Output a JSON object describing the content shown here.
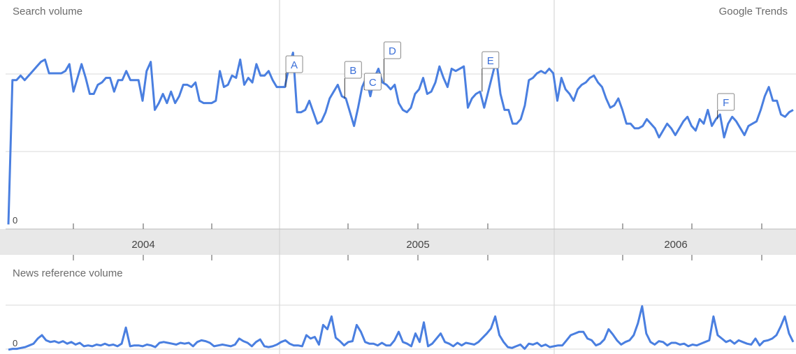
{
  "header": {
    "title": "Search volume",
    "brand": "Google Trends"
  },
  "news": {
    "title": "News reference volume"
  },
  "colors": {
    "line": "#4a7fe0",
    "grid": "#d9d9d9",
    "axis_band": "#e8e8e8"
  },
  "chart_data": [
    {
      "type": "line",
      "title": "Search volume",
      "zero_label": "0",
      "x_range": [
        "2003-07",
        "2006-11"
      ],
      "year_ticks": [
        "2004",
        "2005",
        "2006"
      ],
      "ylim": [
        0,
        100
      ],
      "grid": true,
      "series": [
        {
          "values": [
            2,
            65,
            65,
            67,
            65,
            67,
            69,
            71,
            73,
            74,
            68,
            68,
            68,
            68,
            69,
            72,
            60,
            66,
            72,
            66,
            59,
            59,
            63,
            64,
            66,
            66,
            60,
            65,
            65,
            69,
            65,
            65,
            65,
            56,
            69,
            73,
            52,
            55,
            59,
            55,
            60,
            55,
            58,
            63,
            63,
            62,
            64,
            56,
            55,
            55,
            55,
            56,
            69,
            62,
            63,
            67,
            66,
            74,
            63,
            66,
            64,
            72,
            67,
            67,
            69,
            65,
            62,
            62,
            62,
            71,
            77,
            51,
            51,
            52,
            56,
            51,
            46,
            47,
            51,
            57,
            60,
            63,
            58,
            57,
            51,
            45,
            53,
            62,
            66,
            58,
            66,
            70,
            64,
            63,
            61,
            63,
            55,
            52,
            51,
            53,
            59,
            61,
            66,
            59,
            60,
            64,
            71,
            66,
            62,
            70,
            69,
            70,
            71,
            53,
            57,
            59,
            60,
            53,
            60,
            67,
            74,
            59,
            52,
            52,
            46,
            46,
            48,
            54,
            65,
            66,
            68,
            69,
            68,
            70,
            68,
            56,
            66,
            61,
            59,
            56,
            61,
            63,
            64,
            66,
            67,
            64,
            62,
            57,
            53,
            54,
            57,
            52,
            46,
            46,
            44,
            44,
            45,
            48,
            46,
            44,
            40,
            43,
            46,
            44,
            41,
            44,
            47,
            49,
            45,
            43,
            48,
            46,
            52,
            45,
            48,
            50,
            40,
            46,
            49,
            47,
            44,
            41,
            45,
            46,
            47,
            52,
            58,
            62,
            56,
            56,
            50,
            49,
            51,
            52
          ]
        }
      ],
      "annotations": [
        {
          "label": "A",
          "x": "2004-09"
        },
        {
          "label": "B",
          "x": "2004-12"
        },
        {
          "label": "C",
          "x": "2005-01"
        },
        {
          "label": "D",
          "x": "2005-02"
        },
        {
          "label": "E",
          "x": "2005-07"
        },
        {
          "label": "F",
          "x": "2006-07"
        }
      ]
    },
    {
      "type": "line",
      "title": "News reference volume",
      "zero_label": "0",
      "ylim": [
        0,
        100
      ],
      "grid": true,
      "series": [
        {
          "values": [
            1,
            2,
            2,
            3,
            4,
            6,
            8,
            14,
            18,
            12,
            10,
            11,
            9,
            11,
            8,
            10,
            7,
            9,
            5,
            6,
            5,
            7,
            6,
            8,
            6,
            7,
            5,
            8,
            27,
            5,
            6,
            6,
            5,
            7,
            6,
            4,
            9,
            10,
            9,
            8,
            7,
            9,
            8,
            9,
            5,
            10,
            12,
            11,
            9,
            5,
            6,
            7,
            6,
            5,
            7,
            14,
            11,
            9,
            5,
            10,
            13,
            5,
            4,
            5,
            7,
            10,
            12,
            8,
            6,
            6,
            5,
            18,
            14,
            16,
            7,
            30,
            25,
            40,
            15,
            11,
            6,
            10,
            11,
            30,
            22,
            10,
            8,
            8,
            6,
            9,
            6,
            6,
            12,
            22,
            10,
            8,
            5,
            20,
            10,
            33,
            5,
            8,
            14,
            20,
            10,
            8,
            5,
            9,
            6,
            9,
            8,
            7,
            10,
            15,
            20,
            26,
            40,
            18,
            10,
            4,
            3,
            5,
            7,
            2,
            8,
            7,
            9,
            5,
            7,
            4,
            5,
            6,
            6,
            12,
            18,
            20,
            22,
            22,
            14,
            12,
            6,
            8,
            13,
            25,
            19,
            12,
            7,
            10,
            12,
            18,
            32,
            52,
            20,
            10,
            7,
            11,
            10,
            6,
            9,
            9,
            7,
            8,
            5,
            7,
            6,
            8,
            10,
            12,
            40,
            18,
            14,
            10,
            12,
            8,
            12,
            10,
            8,
            7,
            14,
            6,
            11,
            12,
            14,
            18,
            28,
            40,
            20,
            10
          ]
        }
      ]
    }
  ]
}
